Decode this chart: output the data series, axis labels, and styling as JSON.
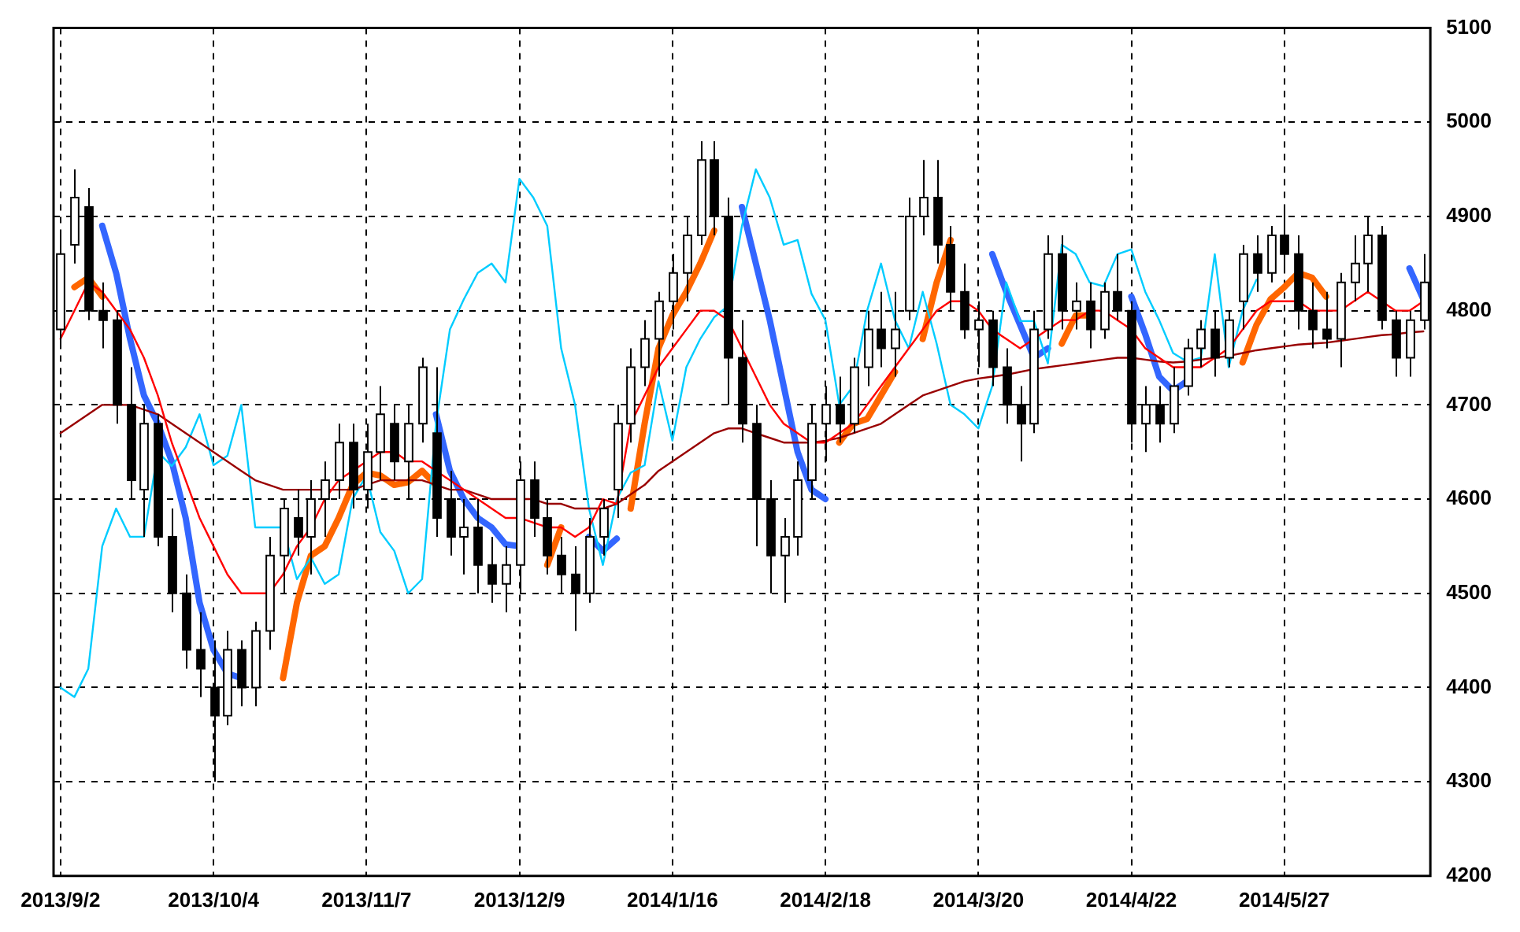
{
  "chart_data": {
    "type": "candlestick",
    "categories": [
      "2013/9/2",
      null,
      null,
      null,
      null,
      null,
      null,
      null,
      null,
      null,
      null,
      "2013/10/4",
      null,
      null,
      null,
      null,
      null,
      null,
      null,
      null,
      null,
      null,
      "2013/11/7",
      null,
      null,
      null,
      null,
      null,
      null,
      null,
      null,
      null,
      null,
      "2013/12/9",
      null,
      null,
      null,
      null,
      null,
      null,
      null,
      null,
      null,
      null,
      "2014/1/16",
      null,
      null,
      null,
      null,
      null,
      null,
      null,
      null,
      null,
      null,
      "2014/2/18",
      null,
      null,
      null,
      null,
      null,
      null,
      null,
      null,
      null,
      null,
      "2014/3/20",
      null,
      null,
      null,
      null,
      null,
      null,
      null,
      null,
      null,
      null,
      "2014/4/22",
      null,
      null,
      null,
      null,
      null,
      null,
      null,
      null,
      null,
      null,
      "2014/5/27",
      null,
      null,
      null,
      null,
      null,
      null,
      null,
      null,
      null,
      null
    ],
    "ohlc": [
      [
        4780,
        4880,
        4760,
        4860
      ],
      [
        4870,
        4950,
        4850,
        4920
      ],
      [
        4910,
        4930,
        4790,
        4800
      ],
      [
        4800,
        4830,
        4760,
        4790
      ],
      [
        4790,
        4800,
        4680,
        4700
      ],
      [
        4700,
        4740,
        4600,
        4620
      ],
      [
        4610,
        4700,
        4560,
        4680
      ],
      [
        4680,
        4690,
        4550,
        4560
      ],
      [
        4560,
        4590,
        4480,
        4500
      ],
      [
        4500,
        4520,
        4420,
        4440
      ],
      [
        4440,
        4480,
        4390,
        4420
      ],
      [
        4400,
        4450,
        4300,
        4370
      ],
      [
        4370,
        4460,
        4360,
        4440
      ],
      [
        4440,
        4450,
        4380,
        4400
      ],
      [
        4400,
        4470,
        4380,
        4460
      ],
      [
        4460,
        4560,
        4440,
        4540
      ],
      [
        4540,
        4600,
        4500,
        4590
      ],
      [
        4580,
        4610,
        4540,
        4560
      ],
      [
        4560,
        4620,
        4520,
        4600
      ],
      [
        4600,
        4640,
        4560,
        4620
      ],
      [
        4620,
        4680,
        4600,
        4660
      ],
      [
        4660,
        4680,
        4590,
        4610
      ],
      [
        4610,
        4680,
        4590,
        4650
      ],
      [
        4650,
        4720,
        4620,
        4690
      ],
      [
        4680,
        4700,
        4620,
        4640
      ],
      [
        4640,
        4700,
        4600,
        4680
      ],
      [
        4680,
        4750,
        4660,
        4740
      ],
      [
        4670,
        4740,
        4560,
        4580
      ],
      [
        4600,
        4630,
        4540,
        4560
      ],
      [
        4560,
        4600,
        4520,
        4570
      ],
      [
        4570,
        4600,
        4500,
        4530
      ],
      [
        4530,
        4560,
        4490,
        4510
      ],
      [
        4510,
        4550,
        4480,
        4530
      ],
      [
        4530,
        4640,
        4500,
        4620
      ],
      [
        4620,
        4640,
        4560,
        4580
      ],
      [
        4580,
        4600,
        4520,
        4540
      ],
      [
        4540,
        4560,
        4500,
        4520
      ],
      [
        4520,
        4550,
        4460,
        4500
      ],
      [
        4500,
        4580,
        4490,
        4560
      ],
      [
        4560,
        4600,
        4540,
        4590
      ],
      [
        4610,
        4700,
        4580,
        4680
      ],
      [
        4680,
        4760,
        4660,
        4740
      ],
      [
        4740,
        4790,
        4720,
        4770
      ],
      [
        4770,
        4820,
        4730,
        4810
      ],
      [
        4810,
        4860,
        4780,
        4840
      ],
      [
        4840,
        4900,
        4810,
        4880
      ],
      [
        4880,
        4980,
        4870,
        4960
      ],
      [
        4960,
        4980,
        4880,
        4900
      ],
      [
        4900,
        4920,
        4700,
        4750
      ],
      [
        4750,
        4790,
        4660,
        4680
      ],
      [
        4680,
        4700,
        4550,
        4600
      ],
      [
        4600,
        4620,
        4500,
        4540
      ],
      [
        4540,
        4580,
        4490,
        4560
      ],
      [
        4560,
        4640,
        4540,
        4620
      ],
      [
        4620,
        4700,
        4600,
        4680
      ],
      [
        4680,
        4720,
        4640,
        4700
      ],
      [
        4700,
        4730,
        4660,
        4680
      ],
      [
        4680,
        4750,
        4670,
        4740
      ],
      [
        4740,
        4800,
        4720,
        4780
      ],
      [
        4780,
        4820,
        4740,
        4760
      ],
      [
        4760,
        4820,
        4730,
        4780
      ],
      [
        4800,
        4920,
        4790,
        4900
      ],
      [
        4900,
        4960,
        4880,
        4920
      ],
      [
        4920,
        4960,
        4850,
        4870
      ],
      [
        4870,
        4890,
        4800,
        4820
      ],
      [
        4820,
        4850,
        4770,
        4780
      ],
      [
        4780,
        4810,
        4740,
        4790
      ],
      [
        4790,
        4800,
        4720,
        4740
      ],
      [
        4740,
        4760,
        4680,
        4700
      ],
      [
        4700,
        4720,
        4640,
        4680
      ],
      [
        4680,
        4800,
        4670,
        4780
      ],
      [
        4780,
        4880,
        4770,
        4860
      ],
      [
        4860,
        4880,
        4780,
        4800
      ],
      [
        4800,
        4830,
        4780,
        4810
      ],
      [
        4810,
        4830,
        4760,
        4780
      ],
      [
        4780,
        4830,
        4770,
        4820
      ],
      [
        4820,
        4860,
        4790,
        4800
      ],
      [
        4800,
        4810,
        4660,
        4680
      ],
      [
        4680,
        4720,
        4650,
        4700
      ],
      [
        4700,
        4720,
        4660,
        4680
      ],
      [
        4680,
        4740,
        4670,
        4720
      ],
      [
        4720,
        4770,
        4710,
        4760
      ],
      [
        4760,
        4790,
        4740,
        4780
      ],
      [
        4780,
        4800,
        4730,
        4750
      ],
      [
        4750,
        4800,
        4740,
        4790
      ],
      [
        4810,
        4870,
        4780,
        4860
      ],
      [
        4860,
        4880,
        4820,
        4840
      ],
      [
        4840,
        4890,
        4830,
        4880
      ],
      [
        4880,
        4910,
        4840,
        4860
      ],
      [
        4860,
        4880,
        4780,
        4800
      ],
      [
        4800,
        4830,
        4760,
        4780
      ],
      [
        4780,
        4820,
        4760,
        4770
      ],
      [
        4770,
        4840,
        4740,
        4830
      ],
      [
        4830,
        4880,
        4810,
        4850
      ],
      [
        4850,
        4900,
        4820,
        4880
      ],
      [
        4880,
        4890,
        4780,
        4790
      ],
      [
        4790,
        4800,
        4730,
        4750
      ],
      [
        4750,
        4800,
        4730,
        4790
      ],
      [
        4790,
        4860,
        4780,
        4830
      ]
    ],
    "series": [
      {
        "type": "line",
        "color": "#ff0000",
        "values": [
          4770,
          4800,
          4830,
          4820,
          4800,
          4780,
          4750,
          4710,
          4660,
          4620,
          4580,
          4550,
          4520,
          4500,
          4500,
          4500,
          4520,
          4550,
          4570,
          4600,
          4620,
          4630,
          4640,
          4650,
          4650,
          4640,
          4640,
          4630,
          4620,
          4610,
          4600,
          4590,
          4580,
          4580,
          4575,
          4570,
          4570,
          4560,
          4570,
          4600,
          4595,
          4680,
          4710,
          4740,
          4760,
          4780,
          4800,
          4800,
          4790,
          4760,
          4730,
          4700,
          4680,
          4670,
          4660,
          4660,
          4670,
          4680,
          4700,
          4720,
          4740,
          4760,
          4780,
          4800,
          4810,
          4810,
          4800,
          4780,
          4770,
          4760,
          4770,
          4780,
          4790,
          4790,
          4800,
          4800,
          4790,
          4780,
          4760,
          4750,
          4740,
          4740,
          4740,
          4750,
          4760,
          4780,
          4800,
          4810,
          4810,
          4810,
          4800,
          4800,
          4800,
          4810,
          4820,
          4810,
          4800,
          4800,
          4810
        ]
      },
      {
        "type": "line",
        "color": "#990000",
        "values": [
          4670,
          4680,
          4690,
          4700,
          4700,
          4700,
          4695,
          4690,
          4680,
          4670,
          4660,
          4650,
          4640,
          4630,
          4620,
          4615,
          4610,
          4610,
          4610,
          4610,
          4610,
          4610,
          4615,
          4620,
          4620,
          4620,
          4620,
          4615,
          4610,
          4610,
          4605,
          4600,
          4600,
          4600,
          4600,
          4595,
          4595,
          4590,
          4590,
          4590,
          4595,
          4605,
          4615,
          4630,
          4640,
          4650,
          4660,
          4670,
          4675,
          4675,
          4670,
          4665,
          4660,
          4660,
          4660,
          4662,
          4665,
          4670,
          4675,
          4680,
          4690,
          4700,
          4710,
          4715,
          4720,
          4725,
          4728,
          4730,
          4732,
          4735,
          4738,
          4740,
          4742,
          4744,
          4746,
          4748,
          4750,
          4750,
          4748,
          4746,
          4745,
          4746,
          4748,
          4750,
          4752,
          4755,
          4758,
          4760,
          4762,
          4764,
          4765,
          4766,
          4768,
          4770,
          4772,
          4774,
          4775,
          4777,
          4778
        ]
      },
      {
        "type": "line",
        "color": "#00ccff",
        "values": [
          4400,
          4390,
          4420,
          4550,
          4590,
          4560,
          4560,
          4650,
          4635,
          4655,
          4690,
          4636,
          4646,
          4700,
          4570,
          4570,
          4570,
          4515,
          4538,
          4510,
          4520,
          4600,
          4625,
          4565,
          4545,
          4500,
          4515,
          4680,
          4780,
          4812,
          4840,
          4850,
          4830,
          4940,
          4920,
          4890,
          4760,
          4700,
          4590,
          4530,
          4600,
          4628,
          4636,
          4725,
          4662,
          4740,
          4770,
          4793,
          4805,
          4890,
          4950,
          4920,
          4870,
          4875,
          4818,
          4790,
          4700,
          4720,
          4800,
          4850,
          4790,
          4760,
          4820,
          4765,
          4700,
          4690,
          4675,
          4720,
          4830,
          4789,
          4789,
          4744,
          4870,
          4860,
          4830,
          4826,
          4860,
          4865,
          4820,
          4790,
          4755,
          4746,
          4750,
          4860,
          4740,
          4800,
          4833,
          null,
          null,
          null,
          null,
          null,
          null,
          null,
          null,
          null,
          null,
          null,
          null
        ]
      },
      {
        "type": "line",
        "color": "#3366ff",
        "values": [
          null,
          null,
          null,
          4890,
          4840,
          4770,
          4710,
          4680,
          4640,
          4580,
          4490,
          4440,
          4415,
          4410,
          null,
          null,
          null,
          null,
          null,
          null,
          null,
          null,
          null,
          null,
          null,
          null,
          null,
          4690,
          4630,
          4600,
          4580,
          4570,
          4552,
          4550,
          null,
          null,
          null,
          null,
          4560,
          4545,
          4558,
          null,
          null,
          null,
          null,
          null,
          null,
          null,
          null,
          4910,
          4850,
          4790,
          4720,
          4650,
          4610,
          4600,
          null,
          null,
          null,
          null,
          null,
          null,
          null,
          null,
          null,
          null,
          null,
          4860,
          4820,
          4785,
          4750,
          4760,
          null,
          null,
          null,
          null,
          null,
          4815,
          4775,
          4730,
          4715,
          4725,
          null,
          null,
          null,
          null,
          null,
          null,
          null,
          null,
          null,
          null,
          null,
          null,
          null,
          null,
          null,
          4845,
          4812
        ]
      },
      {
        "type": "line",
        "color": "#ff6600",
        "values": [
          null,
          4825,
          4835,
          4815,
          null,
          null,
          null,
          null,
          null,
          null,
          null,
          null,
          null,
          null,
          null,
          null,
          4410,
          4490,
          4540,
          4550,
          4580,
          4615,
          4628,
          4625,
          4615,
          4618,
          4630,
          4615,
          null,
          null,
          null,
          null,
          null,
          null,
          null,
          4530,
          4570,
          null,
          null,
          null,
          null,
          4590,
          4680,
          4760,
          4795,
          4820,
          4850,
          4885,
          null,
          null,
          null,
          null,
          null,
          null,
          null,
          null,
          4660,
          4680,
          4685,
          4710,
          4735,
          null,
          4770,
          4830,
          4875,
          null,
          null,
          null,
          null,
          null,
          null,
          null,
          4765,
          4795,
          4795,
          null,
          null,
          null,
          null,
          null,
          null,
          null,
          null,
          null,
          null,
          4745,
          4785,
          4812,
          4825,
          4840,
          4835,
          4815,
          null,
          null,
          null,
          null,
          null,
          null,
          null
        ]
      }
    ],
    "ylim": [
      4200,
      5100
    ],
    "yticks": [
      4200,
      4300,
      4400,
      4500,
      4600,
      4700,
      4800,
      4900,
      5000,
      5100
    ],
    "grid": true
  }
}
